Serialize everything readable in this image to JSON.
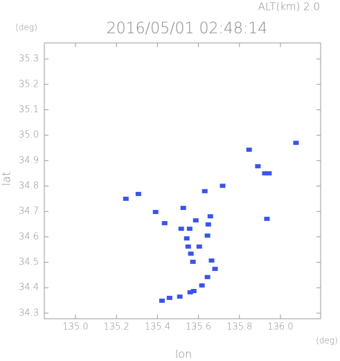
{
  "chart_data": {
    "type": "scatter",
    "title": "2016/05/01 02:48:14",
    "subtitle": "ALT(km) 2.0",
    "y_unit": "(deg)",
    "x_unit": "(deg)",
    "y_label": "lat",
    "x_label": "lon",
    "xlim": [
      134.848,
      136.196
    ],
    "ylim": [
      34.278,
      35.363
    ],
    "xticks": [
      {
        "value": 135.0,
        "label": "135.0"
      },
      135.2,
      135.4,
      135.6,
      135.8,
      {
        "value": 136.0,
        "label": "136.0"
      }
    ],
    "yticks": [
      34.3,
      34.4,
      34.5,
      34.6,
      34.7,
      34.8,
      34.9,
      {
        "value": 35.0,
        "label": "35.0"
      },
      35.1,
      35.2,
      35.3
    ],
    "series": [
      {
        "color": "#3a55e8",
        "x": [
          135.246,
          135.307,
          135.847,
          135.89,
          135.924,
          135.944,
          135.718,
          135.631,
          135.391,
          135.435,
          135.526,
          135.516,
          135.557,
          135.658,
          135.648,
          135.587,
          135.543,
          135.604,
          135.55,
          135.563,
          135.644,
          135.934,
          135.573,
          135.664,
          135.681,
          135.644,
          135.617,
          135.56,
          135.509,
          135.459,
          135.422,
          135.577,
          136.076
        ],
        "values": [
          34.75,
          34.769,
          34.943,
          34.878,
          34.85,
          34.85,
          34.801,
          34.78,
          34.698,
          34.654,
          34.714,
          34.632,
          34.632,
          34.681,
          34.649,
          34.665,
          34.594,
          34.562,
          34.562,
          34.534,
          34.605,
          34.671,
          34.502,
          34.507,
          34.474,
          34.442,
          34.409,
          34.382,
          34.365,
          34.36,
          34.349,
          34.387,
          34.97
        ]
      }
    ]
  }
}
